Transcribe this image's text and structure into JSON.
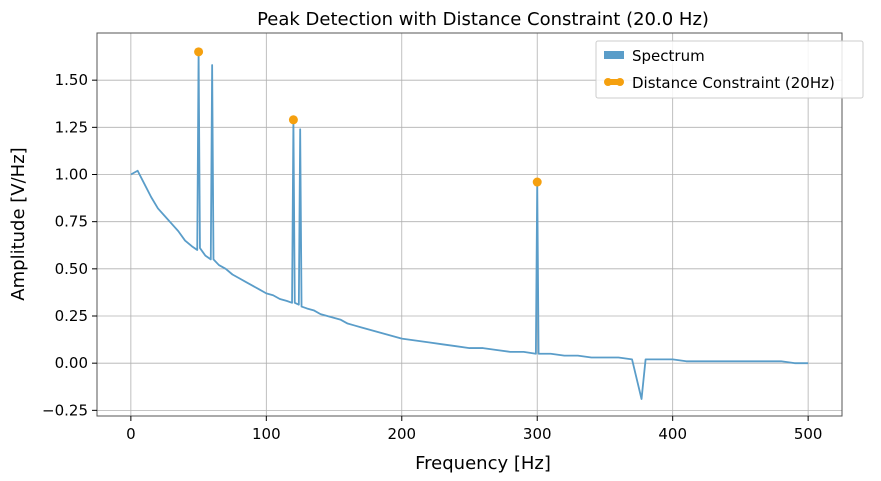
{
  "chart_data": {
    "type": "line",
    "title": "Peak Detection with Distance Constraint (20.0 Hz)",
    "xlabel": "Frequency [Hz]",
    "ylabel": "Amplitude [V/Hz]",
    "xlim": [
      -25,
      525
    ],
    "ylim": [
      -0.28,
      1.75
    ],
    "xticks": [
      0,
      100,
      200,
      300,
      400,
      500
    ],
    "yticks": [
      -0.25,
      0.0,
      0.25,
      0.5,
      0.75,
      1.0,
      1.25,
      1.5
    ],
    "xtick_labels": [
      "0",
      "100",
      "200",
      "300",
      "400",
      "500"
    ],
    "ytick_labels": [
      "−0.25",
      "0.00",
      "0.25",
      "0.50",
      "0.75",
      "1.00",
      "1.25",
      "1.50"
    ],
    "grid": true,
    "legend_position": "top-right",
    "colors": {
      "spectrum": "#5a9dc9",
      "peaks": "#f5a00f",
      "grid": "#b0b0b0"
    },
    "series": [
      {
        "name": "Spectrum",
        "kind": "line",
        "x": [
          0,
          5,
          10,
          15,
          20,
          25,
          30,
          35,
          40,
          45,
          49,
          50,
          51,
          55,
          59,
          60,
          61,
          65,
          70,
          75,
          80,
          85,
          90,
          95,
          100,
          105,
          110,
          115,
          119,
          120,
          121,
          124,
          125,
          126,
          130,
          135,
          140,
          145,
          150,
          155,
          160,
          165,
          170,
          175,
          180,
          185,
          190,
          195,
          200,
          210,
          220,
          230,
          240,
          250,
          260,
          270,
          280,
          290,
          299,
          300,
          301,
          310,
          320,
          330,
          340,
          350,
          360,
          370,
          377,
          380,
          390,
          400,
          410,
          420,
          430,
          440,
          450,
          460,
          470,
          480,
          490,
          500
        ],
        "y": [
          1.0,
          1.02,
          0.95,
          0.88,
          0.82,
          0.78,
          0.74,
          0.7,
          0.65,
          0.62,
          0.6,
          1.65,
          0.61,
          0.57,
          0.55,
          1.58,
          0.55,
          0.52,
          0.5,
          0.47,
          0.45,
          0.43,
          0.41,
          0.39,
          0.37,
          0.36,
          0.34,
          0.33,
          0.32,
          1.29,
          0.32,
          0.31,
          1.24,
          0.3,
          0.29,
          0.28,
          0.26,
          0.25,
          0.24,
          0.23,
          0.21,
          0.2,
          0.19,
          0.18,
          0.17,
          0.16,
          0.15,
          0.14,
          0.13,
          0.12,
          0.11,
          0.1,
          0.09,
          0.08,
          0.08,
          0.07,
          0.06,
          0.06,
          0.05,
          0.96,
          0.05,
          0.05,
          0.04,
          0.04,
          0.03,
          0.03,
          0.03,
          0.02,
          -0.19,
          0.02,
          0.02,
          0.02,
          0.01,
          0.01,
          0.01,
          0.01,
          0.01,
          0.01,
          0.01,
          0.01,
          0.0,
          0.0
        ]
      },
      {
        "name": "Distance Constraint (20Hz)",
        "kind": "scatter",
        "x": [
          50,
          120,
          300
        ],
        "y": [
          1.65,
          1.29,
          0.96
        ]
      }
    ]
  }
}
